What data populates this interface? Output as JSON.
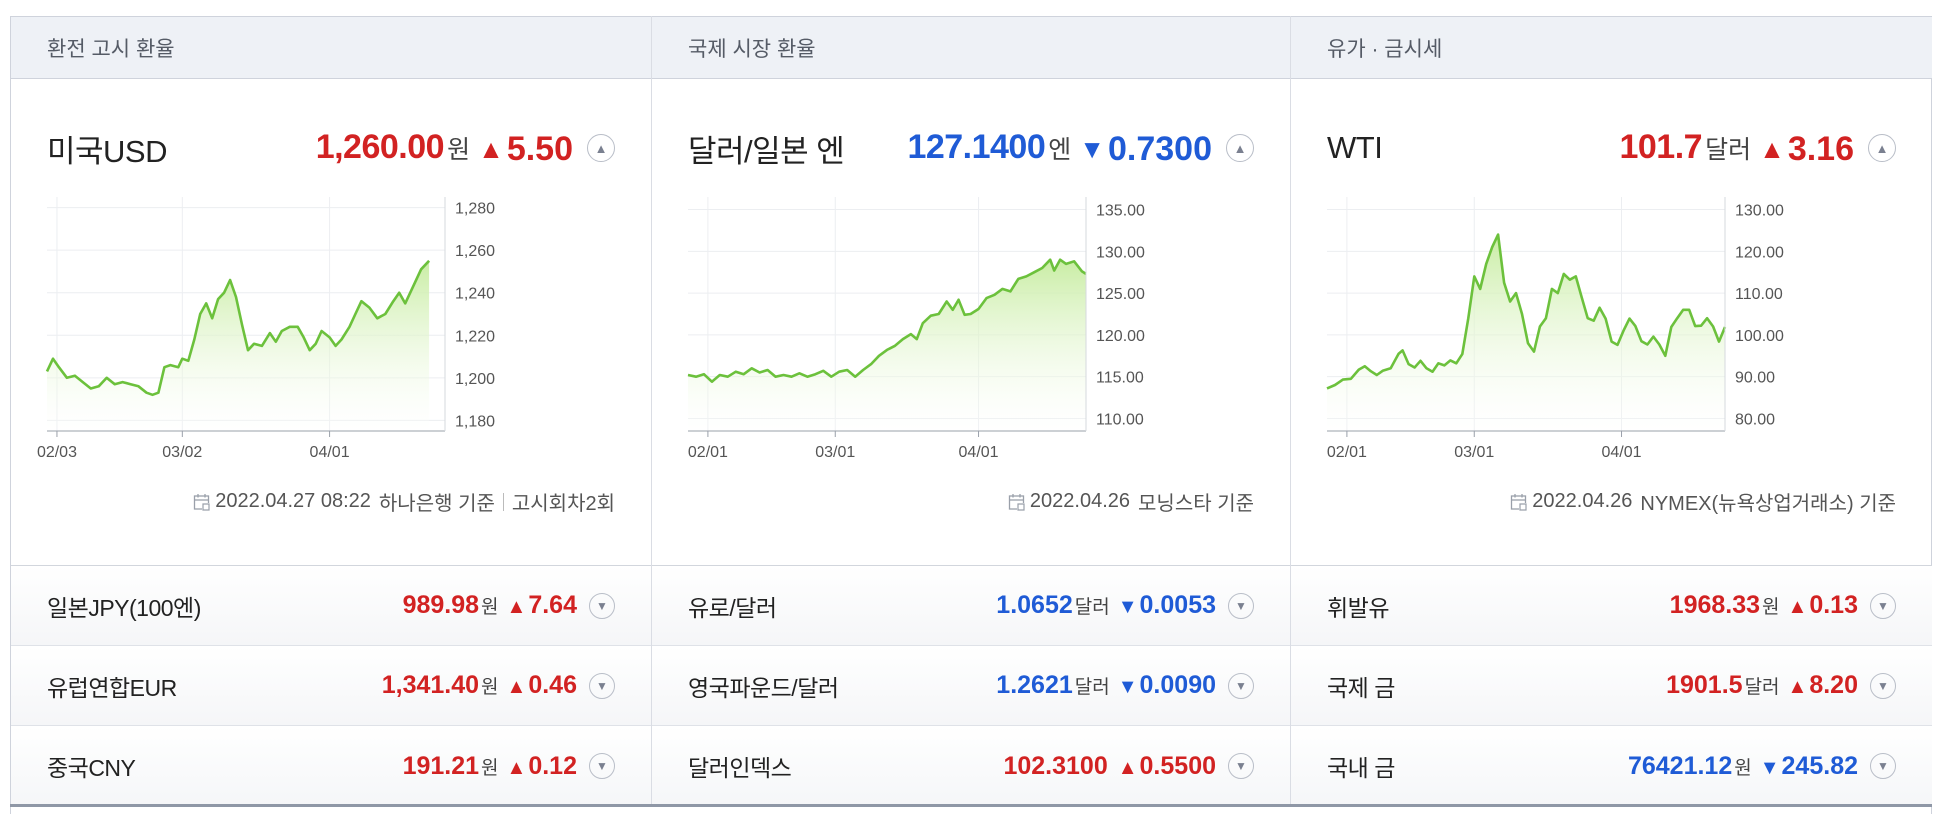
{
  "panels": [
    {
      "header": "환전 고시 환율",
      "main": {
        "name": "미국USD",
        "value": "1,260.00",
        "unit": "원",
        "dir": "up",
        "dir_glyph": "▲",
        "change": "5.50"
      },
      "footer": {
        "date": "2022.04.27 08:22",
        "source": "하나은행 기준",
        "extra": "고시회차2회"
      },
      "rows": [
        {
          "name": "일본JPY(100엔)",
          "value": "989.98",
          "unit": "원",
          "dir": "up",
          "dir_glyph": "▲",
          "change": "7.64"
        },
        {
          "name": "유럽연합EUR",
          "value": "1,341.40",
          "unit": "원",
          "dir": "up",
          "dir_glyph": "▲",
          "change": "0.46"
        },
        {
          "name": "중국CNY",
          "value": "191.21",
          "unit": "원",
          "dir": "up",
          "dir_glyph": "▲",
          "change": "0.12"
        }
      ]
    },
    {
      "header": "국제 시장 환율",
      "main": {
        "name": "달러/일본 엔",
        "value": "127.1400",
        "unit": "엔",
        "dir": "down",
        "dir_glyph": "▼",
        "change": "0.7300"
      },
      "footer": {
        "date": "2022.04.26",
        "source": "모닝스타 기준",
        "extra": ""
      },
      "rows": [
        {
          "name": "유로/달러",
          "value": "1.0652",
          "unit": "달러",
          "dir": "down",
          "dir_glyph": "▼",
          "change": "0.0053"
        },
        {
          "name": "영국파운드/달러",
          "value": "1.2621",
          "unit": "달러",
          "dir": "down",
          "dir_glyph": "▼",
          "change": "0.0090"
        },
        {
          "name": "달러인덱스",
          "value": "102.3100",
          "unit": "",
          "dir": "up",
          "dir_glyph": "▲",
          "change": "0.5500"
        }
      ]
    },
    {
      "header": "유가 · 금시세",
      "main": {
        "name": "WTI",
        "value": "101.7",
        "unit": "달러",
        "dir": "up",
        "dir_glyph": "▲",
        "change": "3.16"
      },
      "footer": {
        "date": "2022.04.26",
        "source": "NYMEX(뉴욕상업거래소) 기준",
        "extra": ""
      },
      "rows": [
        {
          "name": "휘발유",
          "value": "1968.33",
          "unit": "원",
          "dir": "up",
          "dir_glyph": "▲",
          "change": "0.13"
        },
        {
          "name": "국제 금",
          "value": "1901.5",
          "unit": "달러",
          "dir": "up",
          "dir_glyph": "▲",
          "change": "8.20"
        },
        {
          "name": "국내 금",
          "value": "76421.12",
          "unit": "원",
          "dir": "down",
          "dir_glyph": "▼",
          "change": "245.82"
        }
      ]
    }
  ],
  "colors": {
    "up": "#d22222",
    "down": "#1f5bd6",
    "line": "#6cc13c",
    "fill_top": "#c6ec9f"
  },
  "chart_data": [
    {
      "type": "area",
      "title": "",
      "x_ticks": [
        "02/03",
        "03/02",
        "04/01"
      ],
      "y_ticks": [
        "1,280",
        "1,260",
        "1,240",
        "1,220",
        "1,200",
        "1,180"
      ],
      "ylim": [
        1175,
        1285
      ],
      "xlim": [
        0,
        100
      ],
      "x_tick_positions": [
        2.5,
        34,
        71
      ],
      "points": [
        [
          0,
          1203
        ],
        [
          1.5,
          1209
        ],
        [
          3,
          1205
        ],
        [
          5,
          1200
        ],
        [
          7,
          1201
        ],
        [
          9,
          1198
        ],
        [
          11,
          1195
        ],
        [
          13,
          1196
        ],
        [
          15,
          1200
        ],
        [
          17,
          1197
        ],
        [
          19,
          1198
        ],
        [
          21,
          1197
        ],
        [
          23,
          1196
        ],
        [
          25,
          1193
        ],
        [
          26.5,
          1192
        ],
        [
          28,
          1193
        ],
        [
          29.5,
          1205
        ],
        [
          31,
          1206
        ],
        [
          33,
          1205
        ],
        [
          34,
          1209
        ],
        [
          35.5,
          1208
        ],
        [
          37,
          1218
        ],
        [
          38.5,
          1230
        ],
        [
          40,
          1235
        ],
        [
          41.5,
          1228
        ],
        [
          43,
          1237
        ],
        [
          44.5,
          1240
        ],
        [
          46,
          1246
        ],
        [
          47.5,
          1238
        ],
        [
          49,
          1225
        ],
        [
          50.5,
          1213
        ],
        [
          52,
          1216
        ],
        [
          54,
          1215
        ],
        [
          56,
          1221
        ],
        [
          57.5,
          1217
        ],
        [
          59,
          1222
        ],
        [
          61,
          1224
        ],
        [
          63,
          1224
        ],
        [
          64.5,
          1219
        ],
        [
          66,
          1213
        ],
        [
          67.5,
          1216
        ],
        [
          69,
          1222
        ],
        [
          71,
          1219
        ],
        [
          72.5,
          1215
        ],
        [
          74,
          1218
        ],
        [
          76,
          1224
        ],
        [
          77.5,
          1230
        ],
        [
          79,
          1236
        ],
        [
          81,
          1233
        ],
        [
          83,
          1228
        ],
        [
          85,
          1230
        ],
        [
          87,
          1236
        ],
        [
          88.5,
          1240
        ],
        [
          90,
          1235
        ],
        [
          92,
          1243
        ],
        [
          94,
          1251
        ],
        [
          96,
          1255
        ]
      ]
    },
    {
      "type": "area",
      "title": "",
      "x_ticks": [
        "02/01",
        "03/01",
        "04/01"
      ],
      "y_ticks": [
        "135.00",
        "130.00",
        "125.00",
        "120.00",
        "115.00",
        "110.00"
      ],
      "ylim": [
        108.5,
        136.5
      ],
      "xlim": [
        0,
        100
      ],
      "x_tick_positions": [
        5,
        37,
        73
      ],
      "points": [
        [
          0,
          115.2
        ],
        [
          2,
          115.0
        ],
        [
          4,
          115.3
        ],
        [
          6,
          114.4
        ],
        [
          8,
          115.2
        ],
        [
          10,
          115.0
        ],
        [
          12,
          115.6
        ],
        [
          14,
          115.3
        ],
        [
          16,
          116.0
        ],
        [
          18,
          115.5
        ],
        [
          20,
          115.8
        ],
        [
          22,
          115.0
        ],
        [
          24,
          115.2
        ],
        [
          26,
          115.0
        ],
        [
          28,
          115.4
        ],
        [
          30,
          115.0
        ],
        [
          32,
          115.3
        ],
        [
          34,
          115.7
        ],
        [
          36,
          115.0
        ],
        [
          38,
          115.6
        ],
        [
          40,
          115.8
        ],
        [
          42,
          115.0
        ],
        [
          44,
          115.8
        ],
        [
          46,
          116.5
        ],
        [
          48,
          117.5
        ],
        [
          50,
          118.2
        ],
        [
          52,
          118.7
        ],
        [
          54,
          119.5
        ],
        [
          56,
          120.1
        ],
        [
          57.5,
          119.5
        ],
        [
          59,
          121.4
        ],
        [
          61,
          122.3
        ],
        [
          63,
          122.5
        ],
        [
          65,
          124.0
        ],
        [
          66.5,
          123.0
        ],
        [
          68,
          124.2
        ],
        [
          69.5,
          122.4
        ],
        [
          71,
          122.5
        ],
        [
          73,
          123.1
        ],
        [
          75,
          124.4
        ],
        [
          77,
          124.8
        ],
        [
          79,
          125.5
        ],
        [
          81,
          125.2
        ],
        [
          83,
          126.7
        ],
        [
          85,
          127.0
        ],
        [
          87,
          127.5
        ],
        [
          89,
          128.0
        ],
        [
          91,
          129.0
        ],
        [
          92,
          127.7
        ],
        [
          93.5,
          129.0
        ],
        [
          95,
          128.5
        ],
        [
          97,
          128.8
        ],
        [
          99,
          127.6
        ],
        [
          100,
          127.3
        ]
      ]
    },
    {
      "type": "area",
      "title": "",
      "x_ticks": [
        "02/01",
        "03/01",
        "04/01"
      ],
      "y_ticks": [
        "130.00",
        "120.00",
        "110.00",
        "100.00",
        "90.00",
        "80.00"
      ],
      "ylim": [
        77,
        133
      ],
      "xlim": [
        0,
        100
      ],
      "x_tick_positions": [
        5,
        37,
        74
      ],
      "points": [
        [
          0,
          87.2
        ],
        [
          2,
          88
        ],
        [
          4,
          89.3
        ],
        [
          6,
          89.5
        ],
        [
          8,
          91.7
        ],
        [
          9.5,
          92.5
        ],
        [
          11,
          91.3
        ],
        [
          12.5,
          90.4
        ],
        [
          14,
          91.4
        ],
        [
          16,
          92.0
        ],
        [
          18,
          95.5
        ],
        [
          19,
          96.3
        ],
        [
          20.5,
          93
        ],
        [
          22,
          92.2
        ],
        [
          23.5,
          93.8
        ],
        [
          25,
          92
        ],
        [
          26.5,
          91.2
        ],
        [
          28,
          93.2
        ],
        [
          29.5,
          92.7
        ],
        [
          31,
          93.9
        ],
        [
          32.5,
          93.2
        ],
        [
          34,
          95.4
        ],
        [
          35.5,
          104
        ],
        [
          37,
          114
        ],
        [
          38.5,
          111
        ],
        [
          40,
          117
        ],
        [
          41.5,
          121
        ],
        [
          43,
          124
        ],
        [
          44.5,
          112.5
        ],
        [
          46,
          108
        ],
        [
          47.5,
          110
        ],
        [
          49,
          105
        ],
        [
          50.5,
          98
        ],
        [
          52,
          96
        ],
        [
          53.5,
          102
        ],
        [
          55,
          104
        ],
        [
          56.5,
          111
        ],
        [
          58,
          110
        ],
        [
          59.5,
          114.6
        ],
        [
          61,
          113.2
        ],
        [
          62.5,
          114
        ],
        [
          64,
          109
        ],
        [
          65.5,
          104
        ],
        [
          67,
          103.4
        ],
        [
          68.5,
          106.5
        ],
        [
          70,
          103.9
        ],
        [
          71.5,
          98.4
        ],
        [
          73,
          97.6
        ],
        [
          74.5,
          101
        ],
        [
          76,
          103.9
        ],
        [
          77.5,
          102.1
        ],
        [
          79,
          98.5
        ],
        [
          80.5,
          97.7
        ],
        [
          82,
          99.6
        ],
        [
          83.5,
          97.7
        ],
        [
          85,
          95
        ],
        [
          86.5,
          101.9
        ],
        [
          88,
          104
        ],
        [
          89.5,
          106
        ],
        [
          91,
          106
        ],
        [
          92.5,
          102.1
        ],
        [
          94,
          102.2
        ],
        [
          95.5,
          104
        ],
        [
          97,
          102
        ],
        [
          98.5,
          98.4
        ],
        [
          100,
          101.9
        ]
      ]
    }
  ]
}
